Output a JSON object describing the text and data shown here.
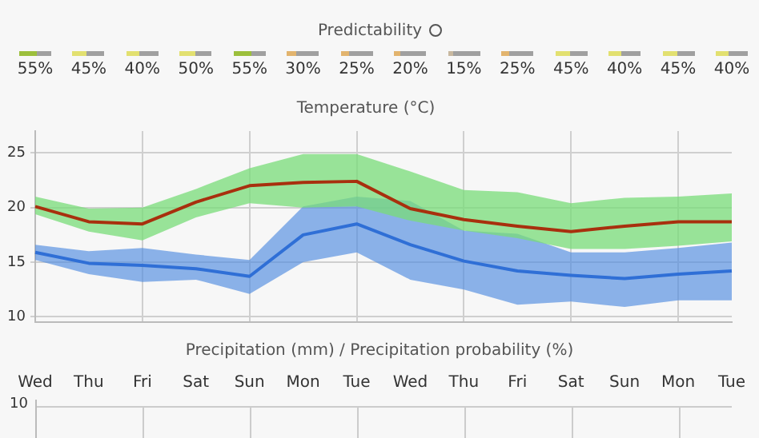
{
  "chart_data": [
    {
      "type": "other",
      "title": "Predictability",
      "categories": [
        null,
        null,
        null,
        null,
        null,
        null,
        null,
        null,
        null,
        null,
        null,
        null,
        null,
        null
      ],
      "values": [
        55,
        45,
        40,
        50,
        55,
        30,
        25,
        20,
        15,
        25,
        45,
        40,
        45,
        40
      ],
      "value_labels": [
        "55%",
        "45%",
        "40%",
        "50%",
        "55%",
        "30%",
        "25%",
        "20%",
        "15%",
        "25%",
        "45%",
        "40%",
        "45%",
        "40%"
      ],
      "colors": [
        "#9cbf3c",
        "#e2e070",
        "#e2e070",
        "#e2e070",
        "#9cbf3c",
        "#e2b46e",
        "#e2b46e",
        "#e2b46e",
        "#c8b8a0",
        "#e2b46e",
        "#e2e070",
        "#e2e070",
        "#e2e070",
        "#e2e070"
      ]
    },
    {
      "type": "line",
      "title": "Temperature (°C)",
      "categories": [
        null,
        null,
        null,
        null,
        null,
        null,
        null,
        null,
        null,
        null,
        null,
        null,
        null,
        null
      ],
      "series": [
        {
          "color": "#a8300e",
          "values": [
            20.1,
            18.7,
            18.5,
            20.5,
            22.0,
            22.3,
            22.4,
            19.9,
            18.9,
            18.3,
            17.8,
            18.3,
            18.7,
            18.7
          ],
          "lower": [
            19.4,
            17.8,
            17.0,
            19.1,
            20.4,
            20.0,
            20.1,
            18.8,
            17.9,
            17.2,
            16.2,
            16.2,
            16.5,
            16.9
          ],
          "upper": [
            21.0,
            19.9,
            20.0,
            21.7,
            23.6,
            24.9,
            24.9,
            23.3,
            21.6,
            21.4,
            20.4,
            20.9,
            21.0,
            21.3
          ]
        },
        {
          "color": "#2f6fd6",
          "values": [
            15.9,
            14.9,
            14.7,
            14.4,
            13.7,
            17.5,
            18.5,
            16.6,
            15.1,
            14.2,
            13.8,
            13.5,
            13.9,
            14.2
          ],
          "lower": [
            15.2,
            13.9,
            13.2,
            13.4,
            12.1,
            15.0,
            15.9,
            13.4,
            12.5,
            11.1,
            11.4,
            10.9,
            11.5,
            11.5
          ],
          "upper": [
            16.6,
            16.0,
            16.3,
            15.7,
            15.2,
            20.1,
            21.0,
            20.6,
            17.9,
            17.6,
            15.9,
            15.9,
            16.3,
            16.8
          ]
        }
      ],
      "ylim": [
        9.5,
        27
      ],
      "yticks": [
        10,
        15,
        20,
        25
      ],
      "grid": true,
      "marker": "none",
      "line_style": "solid",
      "tick_labels": "y"
    },
    {
      "type": "other",
      "title": "Precipitation (mm) / Precipitation probability (%)",
      "categories": [
        "Wed",
        "Thu",
        "Fri",
        "Sat",
        "Sun",
        "Mon",
        "Tue",
        "Wed",
        "Thu",
        "Fri",
        "Sat",
        "Sun",
        "Mon",
        "Tue"
      ],
      "annotations": [
        "10"
      ]
    }
  ]
}
